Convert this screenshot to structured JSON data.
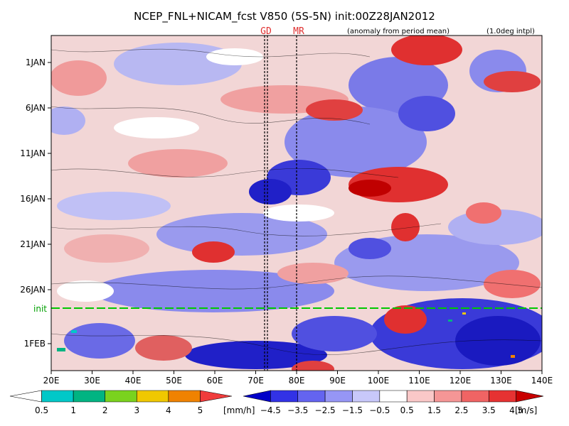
{
  "chart_data": {
    "type": "heatmap",
    "title": "NCEP_FNL+NICAM_fcst V850 (5S-5N) init:00Z28JAN2012",
    "markers": [
      "GD",
      "MR"
    ],
    "subtitle_left": "(anomaly from period mean)",
    "subtitle_right": "(1.0deg intpl)",
    "x_ticks": [
      "20E",
      "30E",
      "40E",
      "50E",
      "60E",
      "70E",
      "80E",
      "90E",
      "100E",
      "110E",
      "120E",
      "130E",
      "140E"
    ],
    "x_range": [
      20,
      140
    ],
    "y_ticks": [
      "1JAN",
      "6JAN",
      "11JAN",
      "16JAN",
      "21JAN",
      "26JAN",
      "1FEB"
    ],
    "init_label": "init",
    "precip_colorbar": {
      "ticks": [
        "0.5",
        "1",
        "2",
        "3",
        "4",
        "5"
      ],
      "unit": "[mm/h]",
      "colors": [
        "#ffffff",
        "#00c8c8",
        "#00b482",
        "#7ad21e",
        "#f0c800",
        "#f08200",
        "#f03c3c"
      ]
    },
    "wind_colorbar": {
      "ticks": [
        "−4.5",
        "−3.5",
        "−2.5",
        "−1.5",
        "−0.5",
        "0.5",
        "1.5",
        "2.5",
        "3.5",
        "4.5"
      ],
      "unit": "[m/s]",
      "colors": [
        "#0000c8",
        "#3232e6",
        "#6464f0",
        "#9696f5",
        "#c8c8fa",
        "#ffffff",
        "#fac8c8",
        "#f59696",
        "#f06464",
        "#e63232",
        "#c80000"
      ]
    },
    "vertical_lines_lon": [
      73,
      80
    ],
    "init_line_color": "#00c800"
  }
}
